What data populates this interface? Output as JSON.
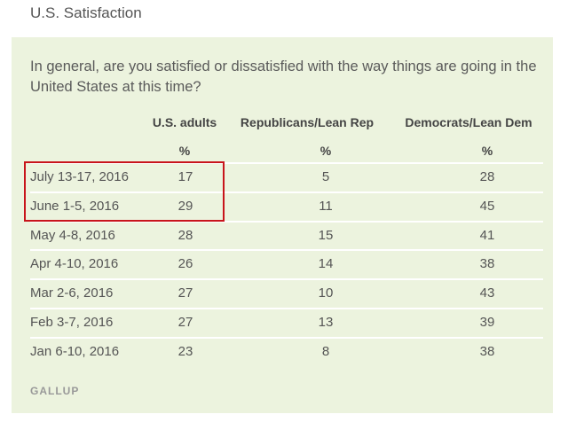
{
  "title": "U.S. Satisfaction",
  "question": "In general, are you satisfied or dissatisfied with the way things are going in the United States at this time?",
  "columns": [
    "U.S. adults",
    "Republicans/Lean Rep",
    "Democrats/Lean Dem"
  ],
  "units": [
    "%",
    "%",
    "%"
  ],
  "rows": [
    {
      "date": "July 13-17, 2016",
      "values": [
        "17",
        "5",
        "28"
      ]
    },
    {
      "date": "June 1-5, 2016",
      "values": [
        "29",
        "11",
        "45"
      ]
    },
    {
      "date": "May 4-8, 2016",
      "values": [
        "28",
        "15",
        "41"
      ]
    },
    {
      "date": "Apr 4-10, 2016",
      "values": [
        "26",
        "14",
        "38"
      ]
    },
    {
      "date": "Mar 2-6, 2016",
      "values": [
        "27",
        "10",
        "43"
      ]
    },
    {
      "date": "Feb 3-7, 2016",
      "values": [
        "27",
        "13",
        "39"
      ]
    },
    {
      "date": "Jan 6-10, 2016",
      "values": [
        "23",
        "8",
        "38"
      ]
    }
  ],
  "highlight_color": "#c8141b",
  "panel_color": "#ecf3de",
  "source": "GALLUP"
}
